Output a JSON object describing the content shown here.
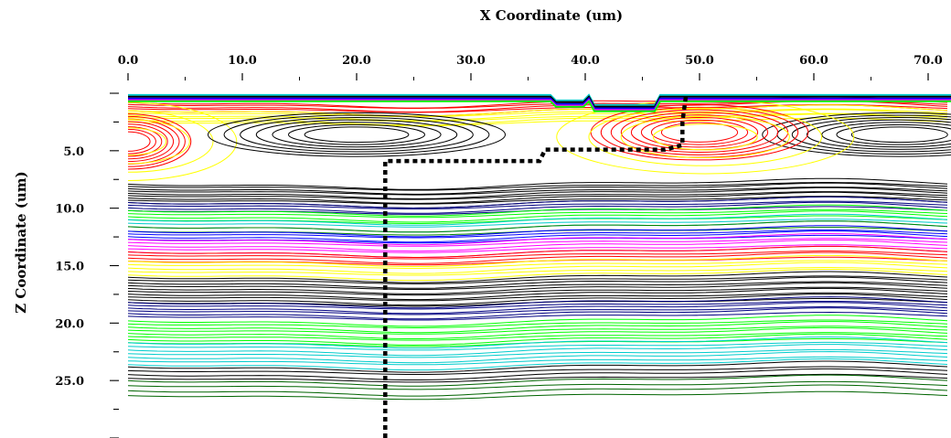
{
  "chart_data": {
    "type": "contour",
    "xlabel": "X Coordinate (um)",
    "ylabel": "Z Coordinate (um)",
    "xlim": [
      0,
      72
    ],
    "ylim": [
      0,
      30
    ],
    "y_inverted": true,
    "x_axis_position": "top",
    "x_ticks": [
      "0.0",
      "10.0",
      "20.0",
      "30.0",
      "40.0",
      "50.0",
      "60.0",
      "70.0"
    ],
    "x_tick_values": [
      0,
      10,
      20,
      30,
      40,
      50,
      60,
      70
    ],
    "y_ticks": [
      "5.0",
      "10.0",
      "15.0",
      "20.0",
      "25.0"
    ],
    "y_tick_values": [
      5,
      10,
      15,
      20,
      25
    ],
    "color_bands": [
      {
        "color": "#ff0000",
        "z_from": 0.8,
        "z_to": 1.5,
        "count": 5
      },
      {
        "color": "#ffff00",
        "z_from": 1.5,
        "z_to": 2.5,
        "count": 6
      },
      {
        "color": "#000000",
        "z_from": 7.9,
        "z_to": 9.5,
        "count": 9
      },
      {
        "color": "#000080",
        "z_from": 9.5,
        "z_to": 10.2,
        "count": 4
      },
      {
        "color": "#00ff00",
        "z_from": 10.2,
        "z_to": 11.0,
        "count": 4
      },
      {
        "color": "#00cccc",
        "z_from": 11.0,
        "z_to": 11.6,
        "count": 3
      },
      {
        "color": "#008000",
        "z_from": 11.6,
        "z_to": 12.0,
        "count": 2
      },
      {
        "color": "#0000ff",
        "z_from": 12.0,
        "z_to": 12.7,
        "count": 4
      },
      {
        "color": "#ff00ff",
        "z_from": 12.7,
        "z_to": 13.8,
        "count": 5
      },
      {
        "color": "#ff0000",
        "z_from": 13.8,
        "z_to": 14.6,
        "count": 4
      },
      {
        "color": "#ffff00",
        "z_from": 14.6,
        "z_to": 15.8,
        "count": 5
      },
      {
        "color": "#000000",
        "z_from": 16.0,
        "z_to": 18.2,
        "count": 10
      },
      {
        "color": "#000080",
        "z_from": 18.2,
        "z_to": 19.4,
        "count": 6
      },
      {
        "color": "#00ff00",
        "z_from": 19.8,
        "z_to": 21.7,
        "count": 8
      },
      {
        "color": "#00cccc",
        "z_from": 21.7,
        "z_to": 23.6,
        "count": 7
      },
      {
        "color": "#000000",
        "z_from": 23.8,
        "z_to": 24.8,
        "count": 4
      },
      {
        "color": "#006400",
        "z_from": 25.0,
        "z_to": 26.3,
        "count": 4
      }
    ],
    "surface_bands": [
      {
        "color": "#00cccc",
        "z": 0.15
      },
      {
        "color": "#000000",
        "z": 0.3
      },
      {
        "color": "#0000ff",
        "z": 0.45
      },
      {
        "color": "#ff00ff",
        "z": 0.6
      },
      {
        "color": "#00ff00",
        "z": 0.7
      }
    ],
    "dotted_path": [
      [
        22.5,
        30.0
      ],
      [
        22.5,
        5.9
      ],
      [
        36.0,
        5.9
      ],
      [
        36.5,
        4.9
      ],
      [
        47.0,
        4.9
      ],
      [
        48.5,
        4.5
      ],
      [
        48.5,
        2.5
      ],
      [
        48.8,
        0.3
      ]
    ],
    "ellipse_groups": [
      {
        "color": "#ff0000",
        "cx": 0,
        "cz": 4.2,
        "rx": 5.5,
        "rz": 2.4,
        "count": 8
      },
      {
        "color": "#ffff00",
        "cx": 0,
        "cz": 4.2,
        "rx": 9.5,
        "rz": 3.4,
        "count": 4
      },
      {
        "color": "#000000",
        "cx": 20.0,
        "cz": 3.6,
        "rx": 13.0,
        "rz": 1.9,
        "count": 7
      },
      {
        "color": "#000000",
        "cx": 67.5,
        "cz": 3.6,
        "rx": 12.0,
        "rz": 1.9,
        "count": 7
      },
      {
        "color": "#ff0000",
        "cx": 50.0,
        "cz": 3.4,
        "rx": 9.5,
        "rz": 2.4,
        "count": 8
      },
      {
        "color": "#ffff00",
        "cx": 50.5,
        "cz": 3.8,
        "rx": 13.0,
        "rz": 3.2,
        "count": 4
      }
    ]
  }
}
